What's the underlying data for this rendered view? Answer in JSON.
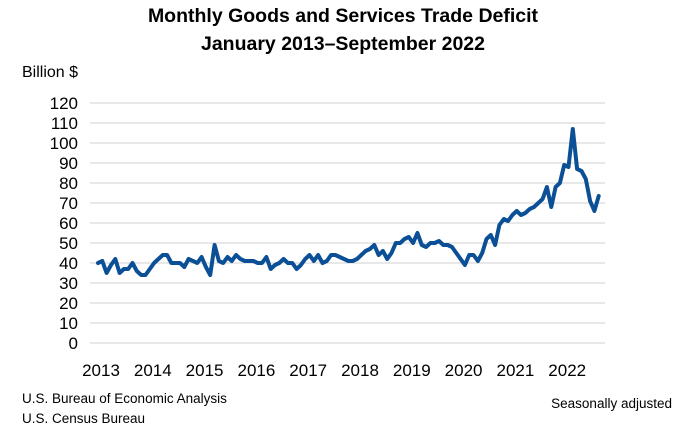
{
  "chart_data": {
    "type": "line",
    "title": "Monthly Goods and Services Trade Deficit",
    "subtitle": "January 2013–September 2022",
    "ylabel": "Billion $",
    "xlabel": "",
    "ylim": [
      0,
      120
    ],
    "yticks": [
      0,
      10,
      20,
      30,
      40,
      50,
      60,
      70,
      80,
      90,
      100,
      110,
      120
    ],
    "xticks": [
      "2013",
      "2014",
      "2015",
      "2016",
      "2017",
      "2018",
      "2019",
      "2020",
      "2021",
      "2022"
    ],
    "grid": true,
    "legend": "none",
    "color": "#0B4F96",
    "x_start": "2013-01",
    "x_end": "2022-09",
    "frequency": "monthly",
    "values": [
      40,
      41,
      35,
      39,
      42,
      35,
      37,
      37,
      40,
      36,
      34,
      34,
      37,
      40,
      42,
      44,
      44,
      40,
      40,
      40,
      38,
      42,
      41,
      40,
      43,
      38,
      34,
      49,
      41,
      40,
      43,
      41,
      44,
      42,
      41,
      41,
      41,
      40,
      40,
      43,
      37,
      39,
      40,
      42,
      40,
      40,
      37,
      39,
      42,
      44,
      41,
      44,
      40,
      41,
      44,
      44,
      43,
      42,
      41,
      41,
      42,
      44,
      46,
      47,
      49,
      44,
      46,
      42,
      45,
      50,
      50,
      52,
      53,
      50,
      55,
      49,
      48,
      50,
      50,
      51,
      49,
      49,
      48,
      45,
      42,
      39,
      44,
      44,
      41,
      45,
      52,
      54,
      49,
      59,
      62,
      61,
      64,
      66,
      64,
      65,
      67,
      68,
      70,
      72,
      78,
      68,
      78,
      80,
      89,
      88,
      107,
      87,
      86,
      82,
      71,
      66,
      73.5
    ]
  },
  "footer": {
    "source1": "U.S. Bureau of Economic Analysis",
    "source2": "U.S. Census Bureau",
    "note": "Seasonally adjusted"
  }
}
